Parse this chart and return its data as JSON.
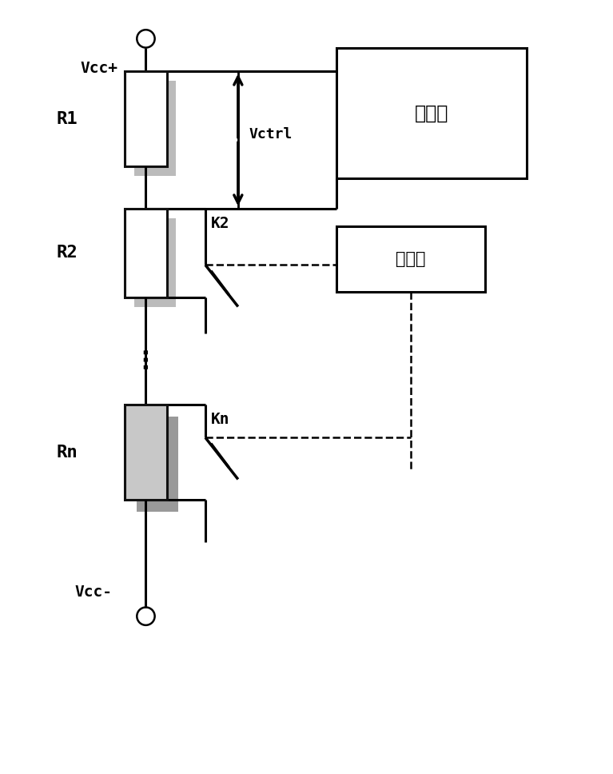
{
  "bg_color": "#ffffff",
  "line_color": "#000000",
  "line_width": 2.2,
  "resistor_fill_R1_R2": "#ffffff",
  "resistor_fill_Rn": "#c8c8c8",
  "resistor_border": "#111111",
  "box_fill": "#ffffff",
  "box_border": "#000000",
  "vcc_plus_label": "Vcc+",
  "vcc_minus_label": "Vcc-",
  "r1_label": "R1",
  "r2_label": "R2",
  "rn_label": "Rn",
  "k2_label": "K2",
  "kn_label": "Kn",
  "vctrl_label": "Vctrl",
  "bianpinqi_label": "变频器",
  "kongzhiqi_label": "控制器",
  "figsize": [
    7.67,
    9.68
  ],
  "dpi": 100
}
